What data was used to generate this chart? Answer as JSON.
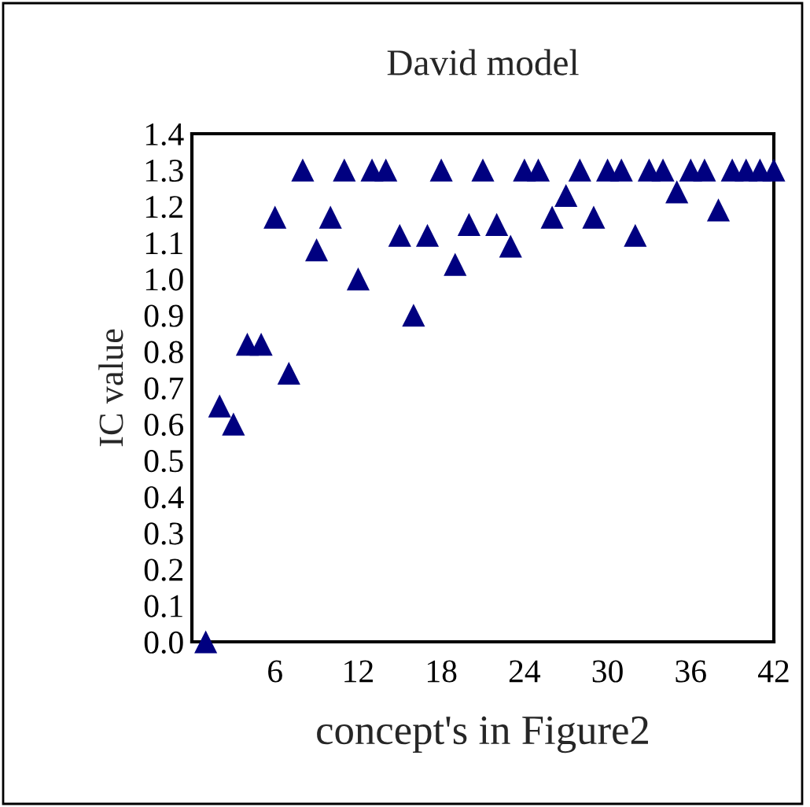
{
  "chart_data": {
    "type": "scatter",
    "title": "David model",
    "xlabel": "concept's in Figure2",
    "ylabel": "IC value",
    "x": [
      1,
      2,
      3,
      4,
      5,
      6,
      7,
      8,
      9,
      10,
      11,
      12,
      13,
      14,
      15,
      16,
      17,
      18,
      19,
      20,
      21,
      22,
      23,
      24,
      25,
      26,
      27,
      28,
      29,
      30,
      31,
      32,
      33,
      34,
      35,
      36,
      37,
      38,
      39,
      40,
      41,
      42
    ],
    "series": [
      {
        "color": "#000080",
        "values": [
          0.0,
          0.65,
          0.6,
          0.82,
          0.82,
          1.17,
          0.74,
          1.3,
          1.08,
          1.17,
          1.3,
          1.0,
          1.3,
          1.3,
          1.12,
          0.9,
          1.12,
          1.3,
          1.04,
          1.15,
          1.3,
          1.15,
          1.09,
          1.3,
          1.3,
          1.17,
          1.23,
          1.3,
          1.17,
          1.3,
          1.3,
          1.12,
          1.3,
          1.3,
          1.24,
          1.3,
          1.3,
          1.19,
          1.3,
          1.3,
          1.3,
          1.3
        ]
      }
    ],
    "xlim": [
      0,
      42
    ],
    "xticks": [
      6,
      12,
      18,
      24,
      30,
      36,
      42
    ],
    "ylim": [
      0,
      1.4
    ],
    "yticks": [
      {
        "value": 0,
        "label": "0.0"
      },
      {
        "value": 0.1,
        "label": "0.1"
      },
      {
        "value": 0.2,
        "label": "0.2"
      },
      {
        "value": 0.3,
        "label": "0.3"
      },
      {
        "value": 0.4,
        "label": "0.4"
      },
      {
        "value": 0.5,
        "label": "0.5"
      },
      {
        "value": 0.6,
        "label": "0.6"
      },
      {
        "value": 0.7,
        "label": "0.7"
      },
      {
        "value": 0.8,
        "label": "0.8"
      },
      {
        "value": 0.9,
        "label": "0.9"
      },
      {
        "value": 1.0,
        "label": "1.0"
      },
      {
        "value": 1.1,
        "label": "1.1"
      },
      {
        "value": 1.2,
        "label": "1.2"
      },
      {
        "value": 1.3,
        "label": "1.3"
      },
      {
        "value": 1.4,
        "label": "1.4"
      }
    ],
    "marker": "triangle",
    "grid": false,
    "legend": false
  }
}
